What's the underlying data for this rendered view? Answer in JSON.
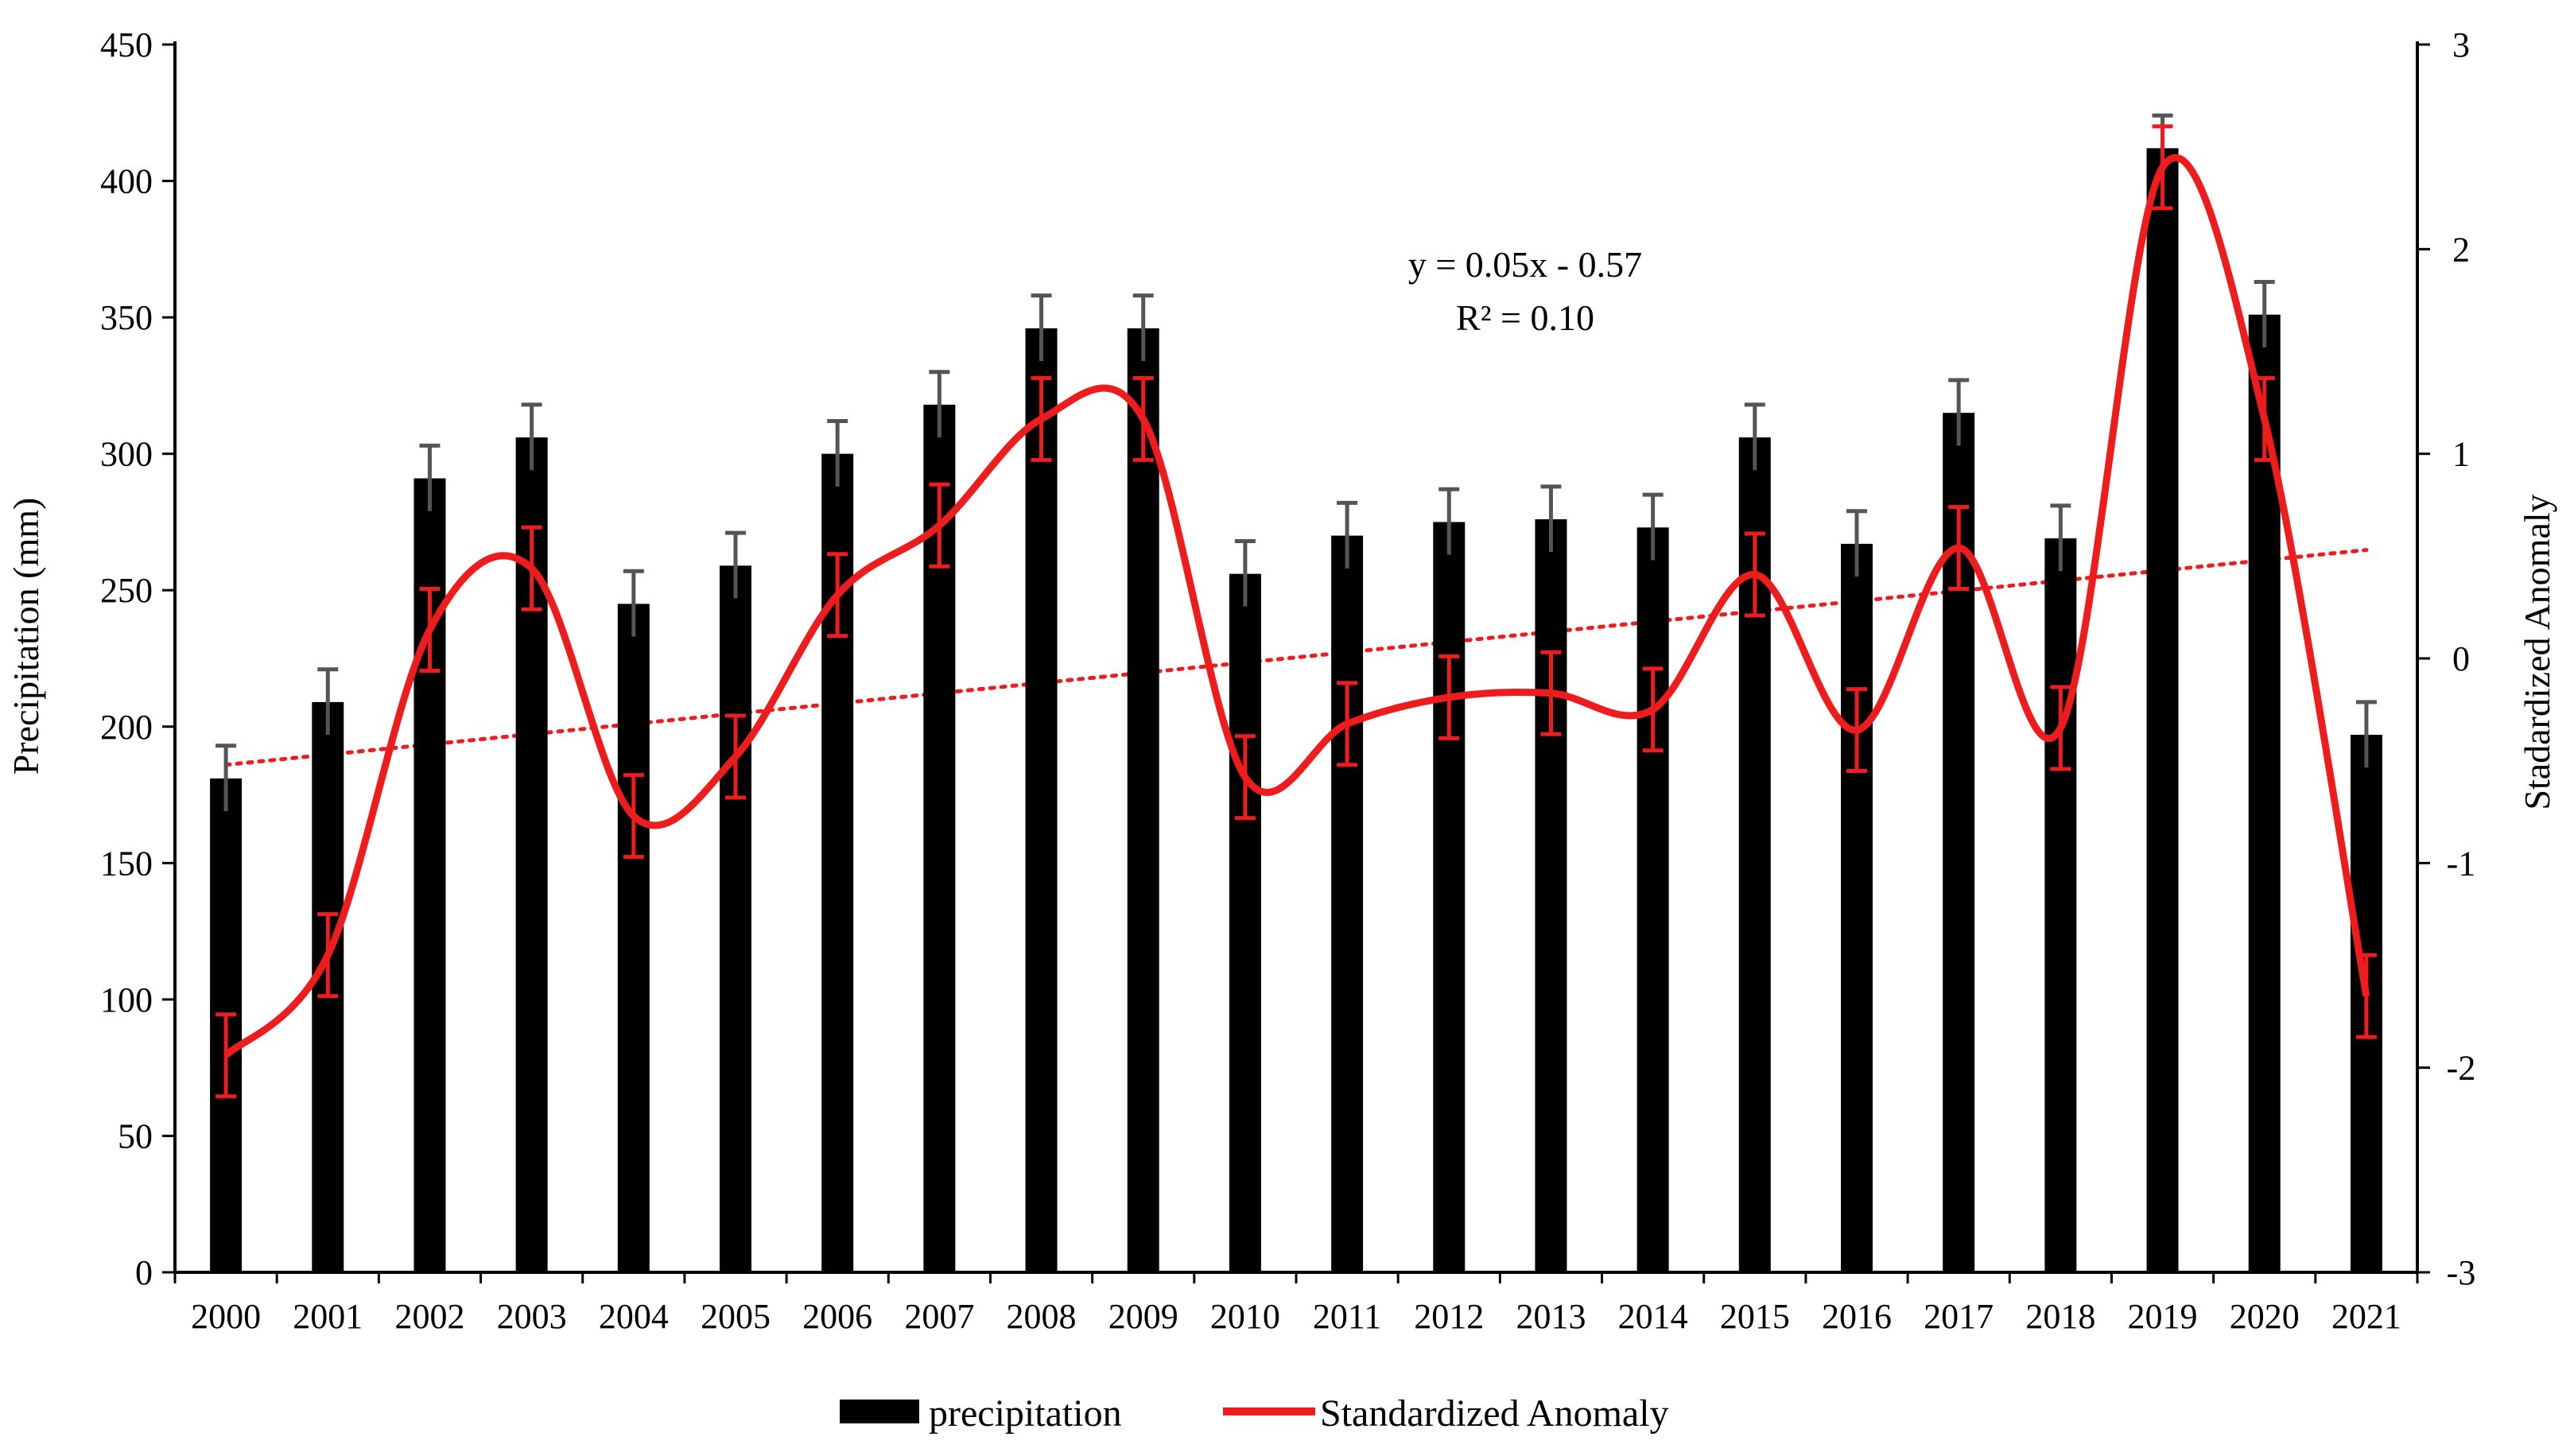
{
  "chart_data": {
    "type": "bar+line",
    "title": "",
    "xlabel": "",
    "ylabel": "Precipitation (mm)",
    "y2label": "Stadardized Anomaly",
    "ylim": [
      0,
      450
    ],
    "y2lim": [
      -3,
      3
    ],
    "y_ticks": [
      "0",
      "50",
      "100",
      "150",
      "200",
      "250",
      "300",
      "350",
      "400",
      "450"
    ],
    "y2_ticks": [
      "-3",
      "-2",
      "-1",
      "0",
      "1",
      "2",
      "3"
    ],
    "categories": [
      "2000",
      "2001",
      "2002",
      "2003",
      "2004",
      "2005",
      "2006",
      "2007",
      "2008",
      "2009",
      "2010",
      "2011",
      "2012",
      "2013",
      "2014",
      "2015",
      "2016",
      "2017",
      "2018",
      "2019",
      "2020",
      "2021"
    ],
    "series": [
      {
        "name": "precipitation",
        "kind": "bar",
        "axis": "left",
        "color": "#000000",
        "values": [
          181,
          209,
          291,
          306,
          245,
          259,
          300,
          318,
          346,
          346,
          256,
          270,
          275,
          276,
          273,
          306,
          267,
          315,
          269,
          412,
          351,
          197
        ],
        "error": 12
      },
      {
        "name": "Standardized Anomaly",
        "kind": "line",
        "axis": "right",
        "color": "#ee1c1c",
        "values": [
          -1.94,
          -1.45,
          0.14,
          0.44,
          -0.77,
          -0.48,
          0.31,
          0.65,
          1.17,
          1.17,
          -0.58,
          -0.32,
          -0.19,
          -0.17,
          -0.25,
          0.41,
          -0.35,
          0.54,
          -0.34,
          2.4,
          1.17,
          -1.65
        ],
        "error": 0.2
      }
    ],
    "trendline": {
      "axis": "right",
      "slope": 0.05,
      "intercept": -0.57,
      "equation": "y = 0.05x - 0.57",
      "r2": "R² = 0.10"
    },
    "legend": [
      "precipitation",
      "Standardized Anomaly"
    ],
    "legend_position": "bottom",
    "grid": false
  }
}
